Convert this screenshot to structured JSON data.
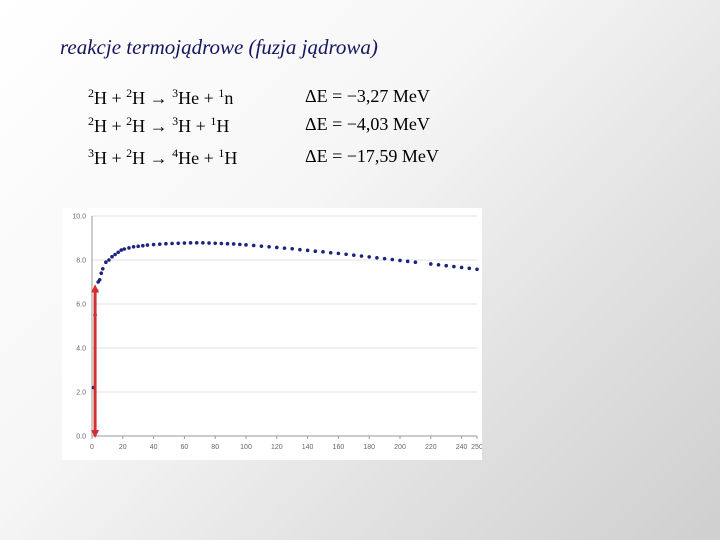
{
  "title": "reakcje termojądrowe (fuzja jądrowa)",
  "reactions": [
    {
      "r1_mass": "2",
      "r1_sym": "H",
      "plus1": "+",
      "r2_mass": "2",
      "r2_sym": "H",
      "arrow": "→",
      "p1_mass": "3",
      "p1_sym": "He",
      "plus2": "+",
      "p2_mass": "1",
      "p2_sym": "n",
      "energy": "ΔE = −3,27 MeV"
    },
    {
      "r1_mass": "2",
      "r1_sym": "H",
      "plus1": "+",
      "r2_mass": "2",
      "r2_sym": "H",
      "arrow": "→",
      "p1_mass": "3",
      "p1_sym": "H",
      "plus2": "+",
      "p2_mass": "1",
      "p2_sym": "H",
      "energy": "ΔE = −4,03 MeV"
    },
    {
      "r1_mass": "3",
      "r1_sym": "H",
      "plus1": "+",
      "r2_mass": "2",
      "r2_sym": "H",
      "arrow": "→",
      "p1_mass": "4",
      "p1_sym": "He",
      "plus2": "+",
      "p2_mass": "1",
      "p2_sym": "H",
      "energy": "ΔE = −17,59 MeV"
    }
  ],
  "chart_data": {
    "type": "scatter",
    "title": "",
    "xlabel": "",
    "ylabel": "",
    "xlim": [
      0,
      250
    ],
    "ylim": [
      0,
      10
    ],
    "x_ticks": [
      "0",
      "20",
      "40",
      "60",
      "80",
      "100",
      "120",
      "140",
      "160",
      "180",
      "200",
      "220",
      "240",
      "250"
    ],
    "y_ticks": [
      "0.0",
      "2.0",
      "4.0",
      "6.0",
      "8.0",
      "10.0"
    ],
    "grid": "horizontal",
    "series_color": "#1a237e",
    "arrow_color": "#d32f2f",
    "arrow": {
      "x": 2,
      "from_y": 0,
      "to_y": 6.8
    },
    "x": [
      1,
      2,
      3,
      4,
      5,
      6,
      7,
      9,
      11,
      13,
      15,
      17,
      19,
      21,
      24,
      27,
      30,
      33,
      36,
      40,
      44,
      48,
      52,
      56,
      60,
      64,
      68,
      72,
      76,
      80,
      84,
      88,
      92,
      96,
      100,
      105,
      110,
      115,
      120,
      125,
      130,
      135,
      140,
      145,
      150,
      155,
      160,
      165,
      170,
      175,
      180,
      185,
      190,
      195,
      200,
      205,
      210,
      220,
      225,
      230,
      235,
      240,
      245,
      250
    ],
    "y": [
      2.2,
      5.5,
      6.6,
      7.0,
      7.1,
      7.4,
      7.6,
      7.9,
      8.0,
      8.15,
      8.25,
      8.35,
      8.45,
      8.5,
      8.55,
      8.6,
      8.62,
      8.65,
      8.68,
      8.7,
      8.72,
      8.74,
      8.75,
      8.76,
      8.77,
      8.78,
      8.78,
      8.78,
      8.77,
      8.76,
      8.75,
      8.74,
      8.73,
      8.71,
      8.69,
      8.66,
      8.63,
      8.6,
      8.57,
      8.54,
      8.51,
      8.47,
      8.44,
      8.4,
      8.37,
      8.33,
      8.3,
      8.26,
      8.22,
      8.18,
      8.14,
      8.1,
      8.06,
      8.02,
      7.98,
      7.94,
      7.9,
      7.82,
      7.78,
      7.74,
      7.7,
      7.66,
      7.62,
      7.58
    ]
  }
}
